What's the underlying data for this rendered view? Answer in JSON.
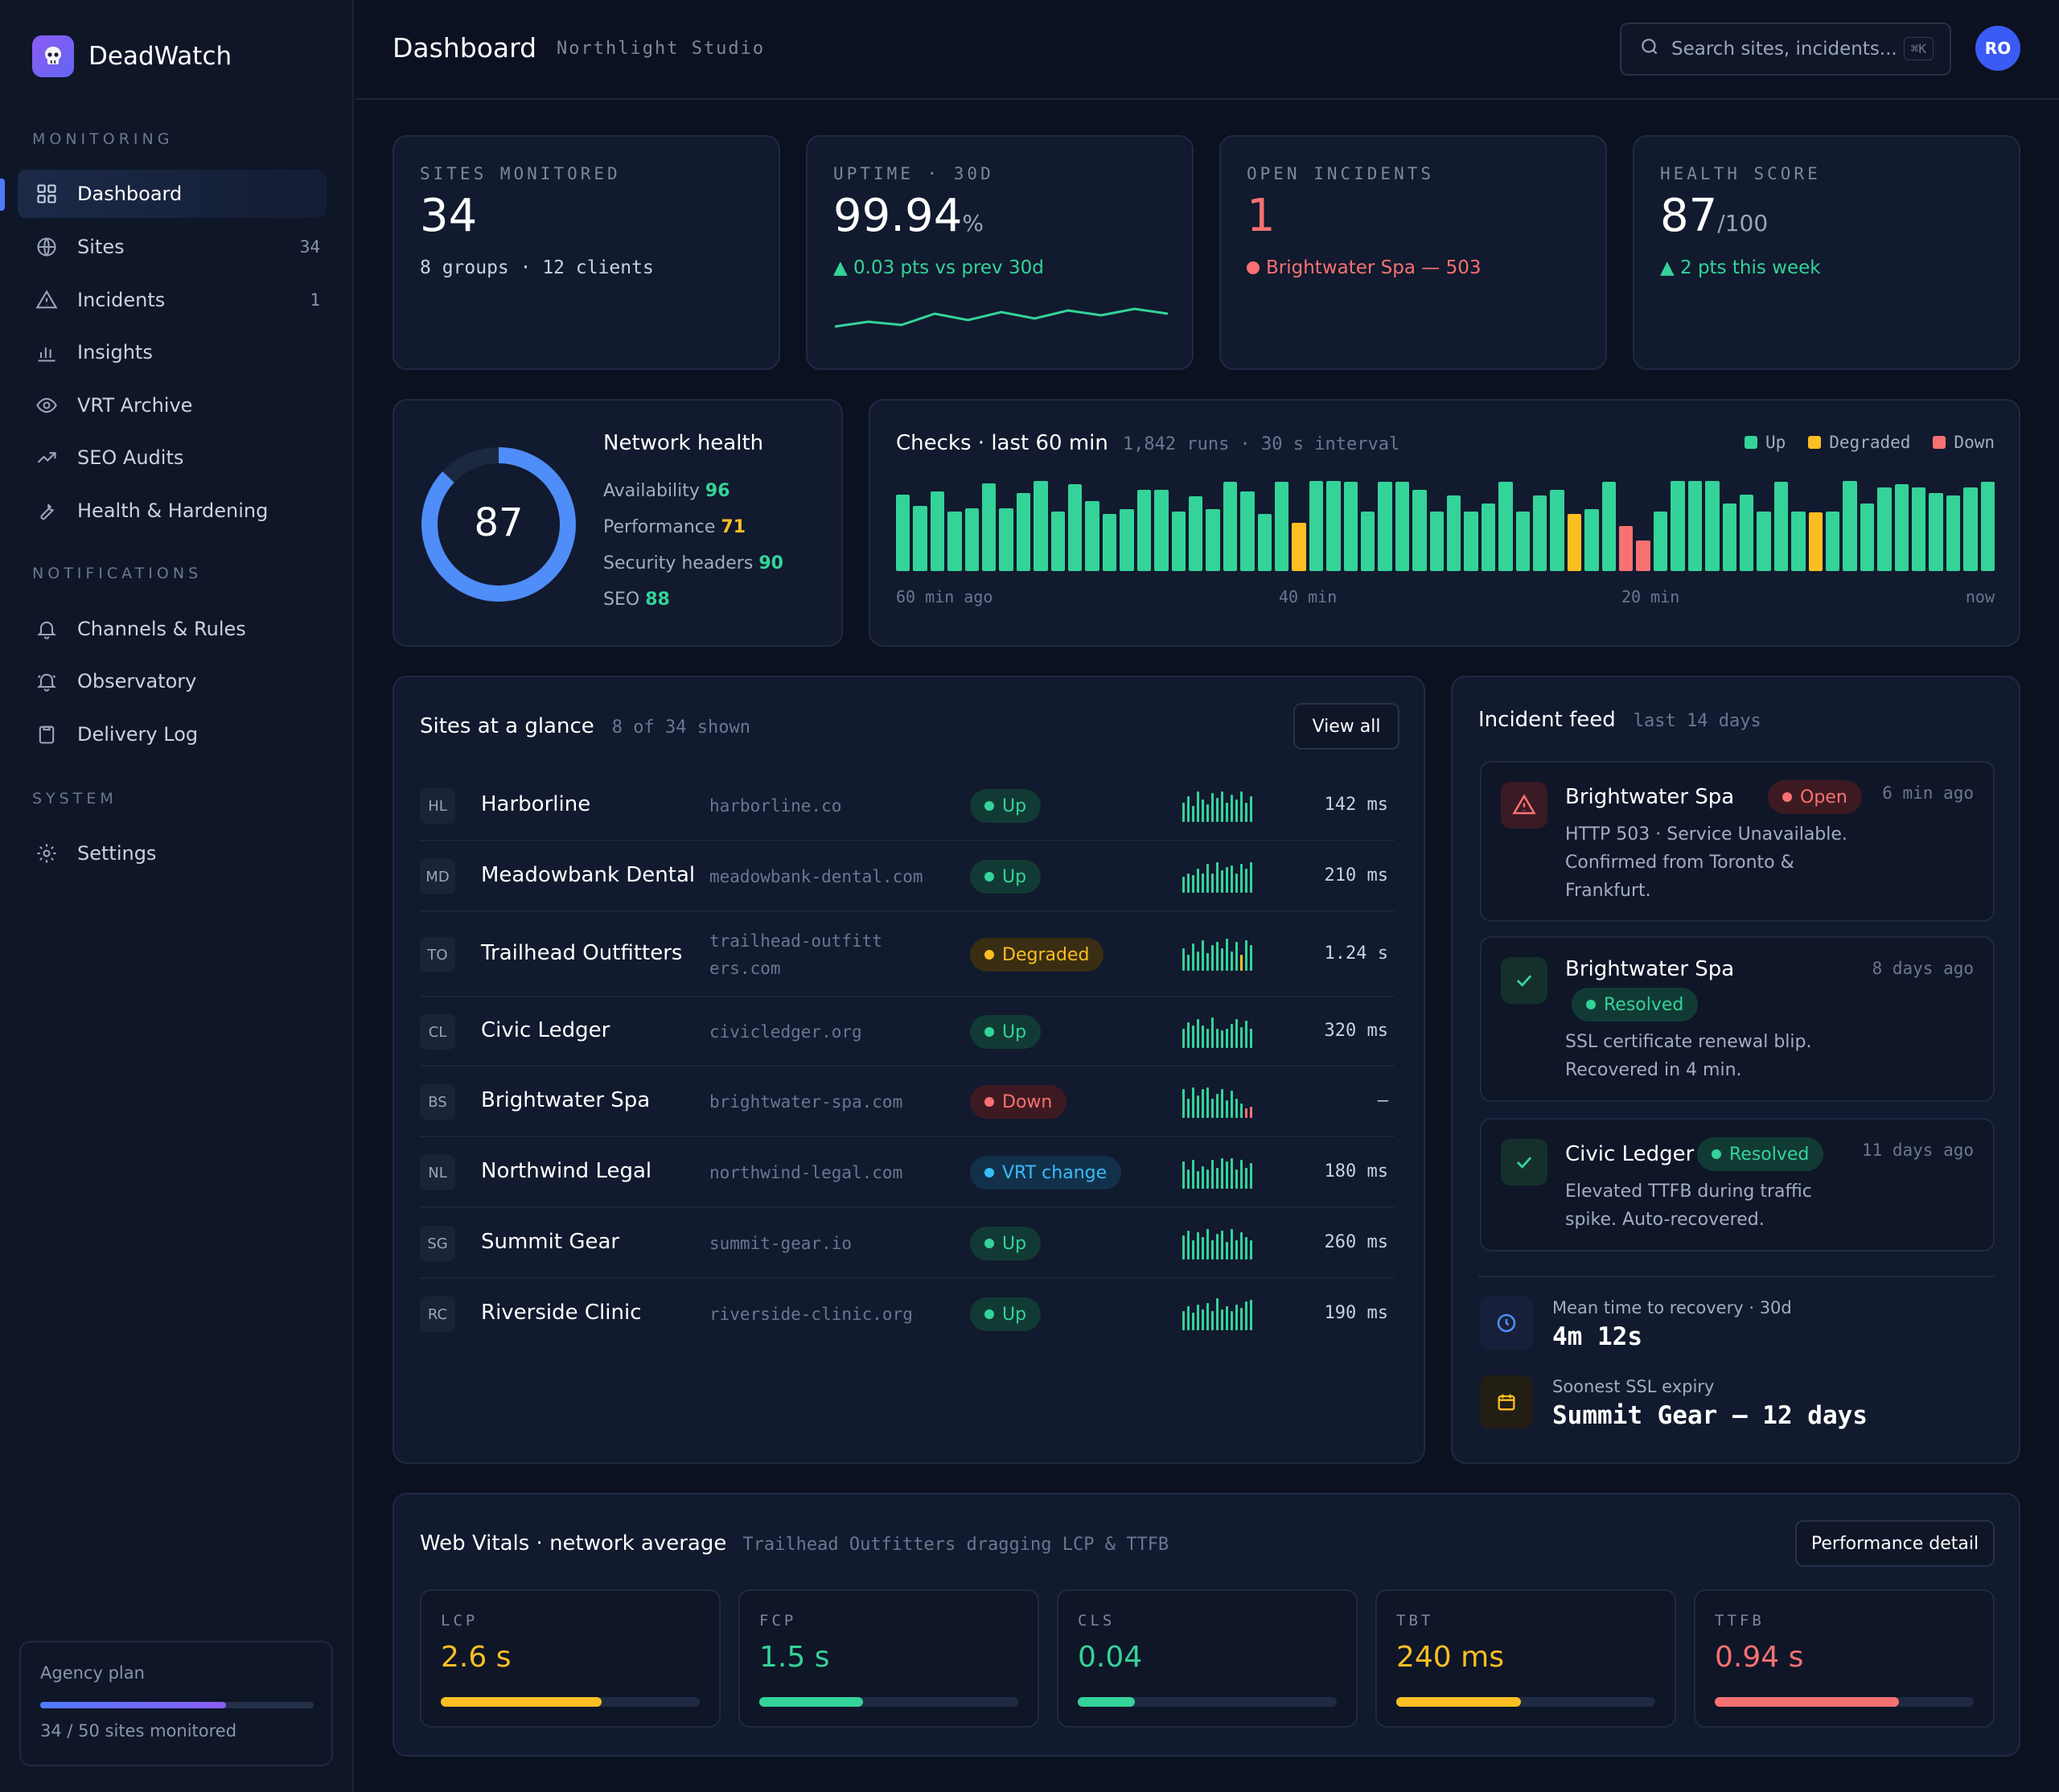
{
  "app": {
    "name": "DeadWatch"
  },
  "sidebar": {
    "sections": [
      "MONITORING",
      "NOTIFICATIONS",
      "SYSTEM"
    ],
    "items": [
      {
        "label": "Dashboard",
        "icon": "grid-icon",
        "active": true
      },
      {
        "label": "Sites",
        "icon": "globe-icon",
        "count": "34"
      },
      {
        "label": "Incidents",
        "icon": "warning-icon",
        "count": "1"
      },
      {
        "label": "Insights",
        "icon": "bar-chart-icon"
      },
      {
        "label": "VRT Archive",
        "icon": "eye-icon"
      },
      {
        "label": "SEO Audits",
        "icon": "trend-icon"
      },
      {
        "label": "Health & Hardening",
        "icon": "wrench-icon"
      },
      {
        "label": "Channels & Rules",
        "icon": "bell-icon"
      },
      {
        "label": "Observatory",
        "icon": "bell-ring-icon"
      },
      {
        "label": "Delivery Log",
        "icon": "clipboard-icon"
      },
      {
        "label": "Settings",
        "icon": "gear-icon"
      }
    ],
    "plan": {
      "title": "Agency plan",
      "status": "34 / 50 sites monitored",
      "used_fraction": 0.68
    }
  },
  "header": {
    "title": "Dashboard",
    "subtitle": "Northlight Studio",
    "search_placeholder": "Search sites, incidents...",
    "search_shortcut": "⌘K",
    "avatar": "RO"
  },
  "stats": [
    {
      "label": "SITES MONITORED",
      "value": "34",
      "unit": "",
      "sub": "8 groups · 12 clients"
    },
    {
      "label": "UPTIME · 30D",
      "value": "99.94",
      "unit": "%",
      "sub": "▲ 0.03 pts vs prev 30d",
      "trend": [
        0.3,
        0.45,
        0.35,
        0.7,
        0.5,
        0.75,
        0.55,
        0.8,
        0.65,
        0.85,
        0.7
      ]
    },
    {
      "label": "OPEN INCIDENTS",
      "value": "1",
      "unit": "",
      "sub": "Brightwater Spa — 503"
    },
    {
      "label": "HEALTH SCORE",
      "value": "87",
      "unit": "/100",
      "sub": "▲ 2 pts this week"
    }
  ],
  "network": {
    "title": "Network health",
    "score": "87",
    "fraction": 0.87,
    "metrics": [
      {
        "label": "Availability",
        "value": "96",
        "color": "#34d399"
      },
      {
        "label": "Performance",
        "value": "71",
        "color": "#fbbf24"
      },
      {
        "label": "Security headers",
        "value": "90",
        "color": "#34d399"
      },
      {
        "label": "SEO",
        "value": "88",
        "color": "#34d399"
      }
    ]
  },
  "checks": {
    "title": "Checks · last 60 min",
    "meta": "1,842 runs · 30 s interval",
    "legend": [
      {
        "label": "Up",
        "color": "#34d399"
      },
      {
        "label": "Degraded",
        "color": "#fbbf24"
      },
      {
        "label": "Down",
        "color": "#f87171"
      }
    ],
    "axis": [
      "60 min ago",
      "40 min",
      "20 min",
      "now"
    ],
    "bars": [
      {
        "v": 0.85,
        "s": "up"
      },
      {
        "v": 0.72,
        "s": "up"
      },
      {
        "v": 0.88,
        "s": "up"
      },
      {
        "v": 0.66,
        "s": "up"
      },
      {
        "v": 0.7,
        "s": "up"
      },
      {
        "v": 0.97,
        "s": "up"
      },
      {
        "v": 0.7,
        "s": "up"
      },
      {
        "v": 0.87,
        "s": "up"
      },
      {
        "v": 1.0,
        "s": "up"
      },
      {
        "v": 0.66,
        "s": "up"
      },
      {
        "v": 0.96,
        "s": "up"
      },
      {
        "v": 0.78,
        "s": "up"
      },
      {
        "v": 0.63,
        "s": "up"
      },
      {
        "v": 0.69,
        "s": "up"
      },
      {
        "v": 0.9,
        "s": "up"
      },
      {
        "v": 0.9,
        "s": "up"
      },
      {
        "v": 0.66,
        "s": "up"
      },
      {
        "v": 0.83,
        "s": "up"
      },
      {
        "v": 0.69,
        "s": "up"
      },
      {
        "v": 0.99,
        "s": "up"
      },
      {
        "v": 0.88,
        "s": "up"
      },
      {
        "v": 0.63,
        "s": "up"
      },
      {
        "v": 0.99,
        "s": "up"
      },
      {
        "v": 0.54,
        "s": "degraded"
      },
      {
        "v": 1.0,
        "s": "up"
      },
      {
        "v": 1.0,
        "s": "up"
      },
      {
        "v": 0.99,
        "s": "up"
      },
      {
        "v": 0.66,
        "s": "up"
      },
      {
        "v": 0.99,
        "s": "up"
      },
      {
        "v": 0.99,
        "s": "up"
      },
      {
        "v": 0.9,
        "s": "up"
      },
      {
        "v": 0.66,
        "s": "up"
      },
      {
        "v": 0.84,
        "s": "up"
      },
      {
        "v": 0.66,
        "s": "up"
      },
      {
        "v": 0.75,
        "s": "up"
      },
      {
        "v": 0.99,
        "s": "up"
      },
      {
        "v": 0.66,
        "s": "up"
      },
      {
        "v": 0.84,
        "s": "up"
      },
      {
        "v": 0.9,
        "s": "up"
      },
      {
        "v": 0.63,
        "s": "degraded"
      },
      {
        "v": 0.69,
        "s": "up"
      },
      {
        "v": 0.99,
        "s": "up"
      },
      {
        "v": 0.5,
        "s": "down"
      },
      {
        "v": 0.34,
        "s": "down"
      },
      {
        "v": 0.66,
        "s": "up"
      },
      {
        "v": 1.0,
        "s": "up"
      },
      {
        "v": 1.0,
        "s": "up"
      },
      {
        "v": 1.0,
        "s": "up"
      },
      {
        "v": 0.75,
        "s": "up"
      },
      {
        "v": 0.85,
        "s": "up"
      },
      {
        "v": 0.66,
        "s": "up"
      },
      {
        "v": 0.99,
        "s": "up"
      },
      {
        "v": 0.66,
        "s": "up"
      },
      {
        "v": 0.65,
        "s": "degraded"
      },
      {
        "v": 0.66,
        "s": "up"
      },
      {
        "v": 1.0,
        "s": "up"
      },
      {
        "v": 0.75,
        "s": "up"
      },
      {
        "v": 0.93,
        "s": "up"
      },
      {
        "v": 0.96,
        "s": "up"
      },
      {
        "v": 0.93,
        "s": "up"
      },
      {
        "v": 0.87,
        "s": "up"
      },
      {
        "v": 0.84,
        "s": "up"
      },
      {
        "v": 0.93,
        "s": "up"
      },
      {
        "v": 0.99,
        "s": "up"
      }
    ]
  },
  "sites": {
    "title": "Sites at a glance",
    "meta": "8 of 34 shown",
    "view_all": "View all",
    "rows": [
      {
        "initials": "HL",
        "name": "Harborline",
        "domain": "harborline.co",
        "status": "Up",
        "kind": "up",
        "ms": "142 ms",
        "spark": [
          0.6,
          0.8,
          0.5,
          0.95,
          0.7,
          0.55,
          0.9,
          0.75,
          0.95,
          0.6,
          0.85,
          0.7,
          0.95,
          0.6,
          0.8
        ]
      },
      {
        "initials": "MD",
        "name": "Meadowbank Dental",
        "domain": "meadowbank-dental.com",
        "status": "Up",
        "kind": "up",
        "ms": "210 ms",
        "spark": [
          0.5,
          0.6,
          0.55,
          0.75,
          0.6,
          0.9,
          0.6,
          0.95,
          0.7,
          0.8,
          0.85,
          0.6,
          0.9,
          0.75,
          0.95
        ]
      },
      {
        "initials": "TO",
        "name": "Trailhead Outfitters",
        "domain": "trailhead-outfitters.com",
        "status": "Degraded",
        "kind": "deg",
        "ms": "1.24 s",
        "spark": [
          0.7,
          0.5,
          0.85,
          0.6,
          0.95,
          0.55,
          0.8,
          0.9,
          0.7,
          1.0,
          0.6,
          0.9,
          0.5,
          0.95,
          0.8
        ],
        "spark_colors": {
          "12": "#fbbf24"
        }
      },
      {
        "initials": "CL",
        "name": "Civic Ledger",
        "domain": "civicledger.org",
        "status": "Up",
        "kind": "up",
        "ms": "320 ms",
        "spark": [
          0.6,
          0.8,
          0.7,
          0.9,
          0.7,
          0.6,
          0.95,
          0.6,
          0.55,
          0.6,
          0.75,
          0.9,
          0.65,
          0.85,
          0.6
        ]
      },
      {
        "initials": "BS",
        "name": "Brightwater Spa",
        "domain": "brightwater-spa.com",
        "status": "Down",
        "kind": "down",
        "ms": "—",
        "spark": [
          0.9,
          0.6,
          0.95,
          0.7,
          0.9,
          0.95,
          0.6,
          0.75,
          0.9,
          0.55,
          0.85,
          0.6,
          0.45,
          0.3,
          0.35
        ],
        "spark_colors": {
          "13": "#f87171",
          "14": "#f87171"
        }
      },
      {
        "initials": "NL",
        "name": "Northwind Legal",
        "domain": "northwind-legal.com",
        "status": "VRT change",
        "kind": "vrt",
        "ms": "180 ms",
        "spark": [
          0.85,
          0.6,
          0.9,
          0.55,
          0.7,
          0.6,
          0.9,
          0.65,
          0.95,
          0.85,
          0.95,
          0.6,
          0.9,
          0.65,
          0.8
        ]
      },
      {
        "initials": "SG",
        "name": "Summit Gear",
        "domain": "summit-gear.io",
        "status": "Up",
        "kind": "up",
        "ms": "260 ms",
        "spark": [
          0.75,
          0.9,
          0.6,
          0.85,
          0.7,
          0.95,
          0.6,
          0.8,
          0.9,
          0.55,
          0.95,
          0.6,
          0.85,
          0.7,
          0.6
        ]
      },
      {
        "initials": "RC",
        "name": "Riverside Clinic",
        "domain": "riverside-clinic.org",
        "status": "Up",
        "kind": "up",
        "ms": "190 ms",
        "spark": [
          0.6,
          0.75,
          0.55,
          0.8,
          0.65,
          0.85,
          0.6,
          1.0,
          0.65,
          0.75,
          0.6,
          0.8,
          0.7,
          0.9,
          0.95
        ]
      }
    ]
  },
  "incidents": {
    "title": "Incident feed",
    "meta": "last 14 days",
    "items": [
      {
        "site": "Brightwater Spa",
        "status": "Open",
        "kind": "down",
        "ago": "6 min ago",
        "desc": [
          "HTTP 503 · Service Unavailable.",
          "Confirmed from Toronto &",
          "Frankfurt."
        ],
        "icon": "warning-icon"
      },
      {
        "site": "Brightwater Spa",
        "status": "Resolved",
        "kind": "up",
        "ago": "8 days ago",
        "desc": [
          "SSL certificate renewal blip.",
          "Recovered in 4 min."
        ],
        "icon": "check-icon"
      },
      {
        "site": "Civic Ledger",
        "status": "Resolved",
        "kind": "up",
        "ago": "11 days ago",
        "desc": [
          "Elevated TTFB during traffic",
          "spike. Auto-recovered."
        ],
        "icon": "check-icon"
      }
    ],
    "mttr_label": "Mean time to recovery · 30d",
    "mttr_value": "4m 12s",
    "ssl_label": "Soonest SSL expiry",
    "ssl_value": "Summit Gear — 12 days"
  },
  "vitals": {
    "title": "Web Vitals · network average",
    "meta": "Trailhead Outfitters dragging LCP & TTFB",
    "button": "Performance detail",
    "items": [
      {
        "label": "LCP",
        "value": "2.6 s",
        "fraction": 0.62,
        "color": "#fbbf24"
      },
      {
        "label": "FCP",
        "value": "1.5 s",
        "fraction": 0.4,
        "color": "#34d399"
      },
      {
        "label": "CLS",
        "value": "0.04",
        "fraction": 0.22,
        "color": "#34d399"
      },
      {
        "label": "TBT",
        "value": "240 ms",
        "fraction": 0.48,
        "color": "#fbbf24"
      },
      {
        "label": "TTFB",
        "value": "0.94 s",
        "fraction": 0.71,
        "color": "#f87171"
      }
    ]
  }
}
